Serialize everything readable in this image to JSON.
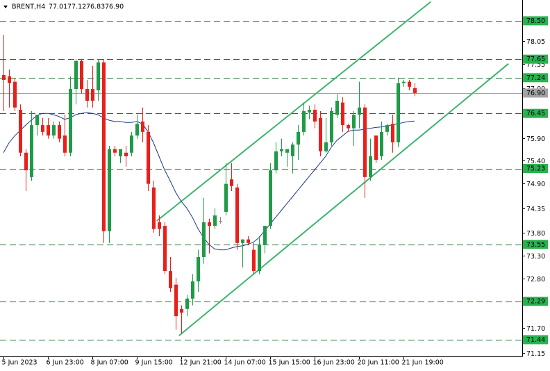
{
  "header": {
    "symbol": "BRENT,H4",
    "ohlc": [
      "77.01",
      "77.12",
      "76.83",
      "76.90"
    ]
  },
  "chart_data": {
    "type": "candlestick",
    "categories": [
      "5 Jun 2023",
      null,
      null,
      null,
      null,
      null,
      null,
      null,
      "6 Jun 23:00",
      null,
      null,
      null,
      null,
      null,
      null,
      null,
      "8 Jun 07:00",
      null,
      null,
      null,
      null,
      null,
      null,
      null,
      "9 Jun 15:00",
      null,
      null,
      null,
      null,
      null,
      null,
      null,
      "12 Jun 21:00",
      null,
      null,
      null,
      null,
      null,
      null,
      null,
      "14 Jun 07:00",
      null,
      null,
      null,
      null,
      null,
      null,
      null,
      "15 Jun 15:00",
      null,
      null,
      null,
      null,
      null,
      null,
      null,
      "16 Jun 23:00",
      null,
      null,
      null,
      null,
      null,
      null,
      null,
      "20 Jun 11:00",
      null,
      null,
      null,
      null,
      null,
      null,
      null,
      "21 Jun 19:00",
      null,
      null
    ],
    "open": [
      77.3,
      77.27,
      77.15,
      76.53,
      75.58,
      75.04,
      76.19,
      76.19,
      76.19,
      75.96,
      76.19,
      75.96,
      75.58,
      76.99,
      77.61,
      76.99,
      76.99,
      76.96,
      77.58,
      73.84,
      75.66,
      75.5,
      75.58,
      75.58,
      75.96,
      76.27,
      76.04,
      74.81,
      74.04,
      73.96,
      72.96,
      72.66,
      72.12,
      72.12,
      72.35,
      72.73,
      73.27,
      74.04,
      73.96,
      74.07,
      74.27,
      74.99,
      74.81,
      73.58,
      73.66,
      73.43,
      72.96,
      73.55,
      73.96,
      75.19,
      75.61,
      75.58,
      75.5,
      75.76,
      76.04,
      76.47,
      76.53,
      76.35,
      75.61,
      75.81,
      76.42,
      76.69,
      76.19,
      76.12,
      76.42,
      76.58,
      75.04,
      75.96,
      75.5,
      76.04,
      76.22,
      75.81,
      77.12,
      77.15,
      77.01
    ],
    "high": [
      78.19,
      77.42,
      77.24,
      76.65,
      75.66,
      76.5,
      76.42,
      76.35,
      76.35,
      76.27,
      76.27,
      76.42,
      77.27,
      77.65,
      77.65,
      77.19,
      77.5,
      77.65,
      77.65,
      75.73,
      75.73,
      75.66,
      75.73,
      76.04,
      76.42,
      76.58,
      76.19,
      74.96,
      74.19,
      74.04,
      73.27,
      72.81,
      72.2,
      72.43,
      72.89,
      73.43,
      74.58,
      74.12,
      74.35,
      74.16,
      75.35,
      75.35,
      74.89,
      73.66,
      73.73,
      73.58,
      73.73,
      73.96,
      75.35,
      75.81,
      75.89,
      75.66,
      75.81,
      76.19,
      76.69,
      76.62,
      76.65,
      76.5,
      76.35,
      76.58,
      76.88,
      76.81,
      76.22,
      76.5,
      77.15,
      76.65,
      75.89,
      75.96,
      76.27,
      76.22,
      76.42,
      77.24,
      77.19,
      77.19,
      77.12
    ],
    "low": [
      76.5,
      76.58,
      76.5,
      75.5,
      74.73,
      74.96,
      75.96,
      75.96,
      75.89,
      75.89,
      75.81,
      75.5,
      75.5,
      76.65,
      76.89,
      76.58,
      76.58,
      76.73,
      73.58,
      73.58,
      75.5,
      75.35,
      75.27,
      75.5,
      75.89,
      75.81,
      74.73,
      73.81,
      73.73,
      72.89,
      72.5,
      71.66,
      71.58,
      71.96,
      72.2,
      72.5,
      73.12,
      73.35,
      73.89,
      74.01,
      74.19,
      74.73,
      73.43,
      73.04,
      73.55,
      72.89,
      72.89,
      73.35,
      73.89,
      75.12,
      75.5,
      75.27,
      75.12,
      75.42,
      75.96,
      76.32,
      76.12,
      75.5,
      75.58,
      75.73,
      76.35,
      76.04,
      76.04,
      75.73,
      76.12,
      74.58,
      74.96,
      75.35,
      75.42,
      75.96,
      75.58,
      75.7,
      77.04,
      76.96,
      76.83
    ],
    "close": [
      77.19,
      77.12,
      76.58,
      75.58,
      75.19,
      76.19,
      76.42,
      76.04,
      75.96,
      76.19,
      75.89,
      75.58,
      76.99,
      77.61,
      76.99,
      76.73,
      76.73,
      77.58,
      73.84,
      75.66,
      75.58,
      75.66,
      75.5,
      75.96,
      76.22,
      76.04,
      74.89,
      73.89,
      73.89,
      72.96,
      72.58,
      71.96,
      72.04,
      72.35,
      72.73,
      73.27,
      74.04,
      73.96,
      74.19,
      74.07,
      74.89,
      74.84,
      73.58,
      73.66,
      73.58,
      72.96,
      73.55,
      73.96,
      75.19,
      75.61,
      75.66,
      75.66,
      75.76,
      76.04,
      76.5,
      76.53,
      76.27,
      75.61,
      75.81,
      76.5,
      76.73,
      76.19,
      76.12,
      76.42,
      76.58,
      75.04,
      75.5,
      75.42,
      76.04,
      76.19,
      75.81,
      77.12,
      77.15,
      77.04,
      76.9
    ],
    "ma": [
      75.58,
      75.8,
      75.95,
      76.07,
      76.19,
      76.3,
      76.4,
      76.45,
      76.45,
      76.42,
      76.38,
      76.32,
      76.35,
      76.42,
      76.45,
      76.47,
      76.45,
      76.42,
      76.35,
      76.3,
      76.27,
      76.27,
      76.25,
      76.25,
      76.27,
      76.22,
      76.05,
      75.8,
      75.5,
      75.2,
      74.96,
      74.7,
      74.5,
      74.35,
      74.15,
      73.9,
      73.7,
      73.55,
      73.45,
      73.43,
      73.43,
      73.47,
      73.5,
      73.52,
      73.55,
      73.6,
      73.7,
      73.85,
      74.0,
      74.15,
      74.3,
      74.45,
      74.6,
      74.75,
      74.9,
      75.05,
      75.2,
      75.35,
      75.5,
      75.7,
      75.85,
      75.95,
      76.05,
      76.08,
      76.08,
      76.1,
      76.12,
      76.14,
      76.15,
      76.17,
      76.2,
      76.22,
      76.25,
      76.27,
      76.28
    ],
    "channels": [
      {
        "x": [
          27.6,
          76.9
        ],
        "y": [
          74.07,
          78.92
        ]
      },
      {
        "x": [
          31.6,
          90.9
        ],
        "y": [
          71.53,
          77.55
        ]
      }
    ],
    "levels": [
      {
        "value": 78.5,
        "label": "78.50"
      },
      77.65,
      77.24,
      76.45,
      75.23,
      73.55,
      72.29,
      71.44
    ],
    "last_price": {
      "value": 76.9,
      "label": "76.90"
    },
    "xlim": [
      -0.625,
      93.375
    ],
    "ylim": [
      71.07,
      78.96
    ],
    "yticks": [
      {
        "value": 71.15,
        "label": "71.15"
      },
      {
        "value": 71.7,
        "label": "71.70"
      },
      {
        "value": 72.8,
        "label": "72.80"
      },
      {
        "value": 73.3,
        "label": "73.30"
      },
      {
        "value": 73.8,
        "label": "73.80"
      },
      74.35,
      {
        "value": 74.9,
        "label": "74.90"
      },
      {
        "value": 75.4,
        "label": "75.40"
      },
      {
        "value": 75.9,
        "label": "75.90"
      },
      {
        "value": 77,
        "label": "77.00"
      },
      77.55,
      78.05
    ],
    "up_color": "#1f9b48",
    "down_color": "#e8201b",
    "flat_color": "#8a8a8a",
    "ma_color": "#1a3a8a",
    "channel_color": "#3cb46e",
    "level_color": "#1e6b35",
    "level_box_color": "#27b34f",
    "last_price_color": "#a3a3a3"
  }
}
